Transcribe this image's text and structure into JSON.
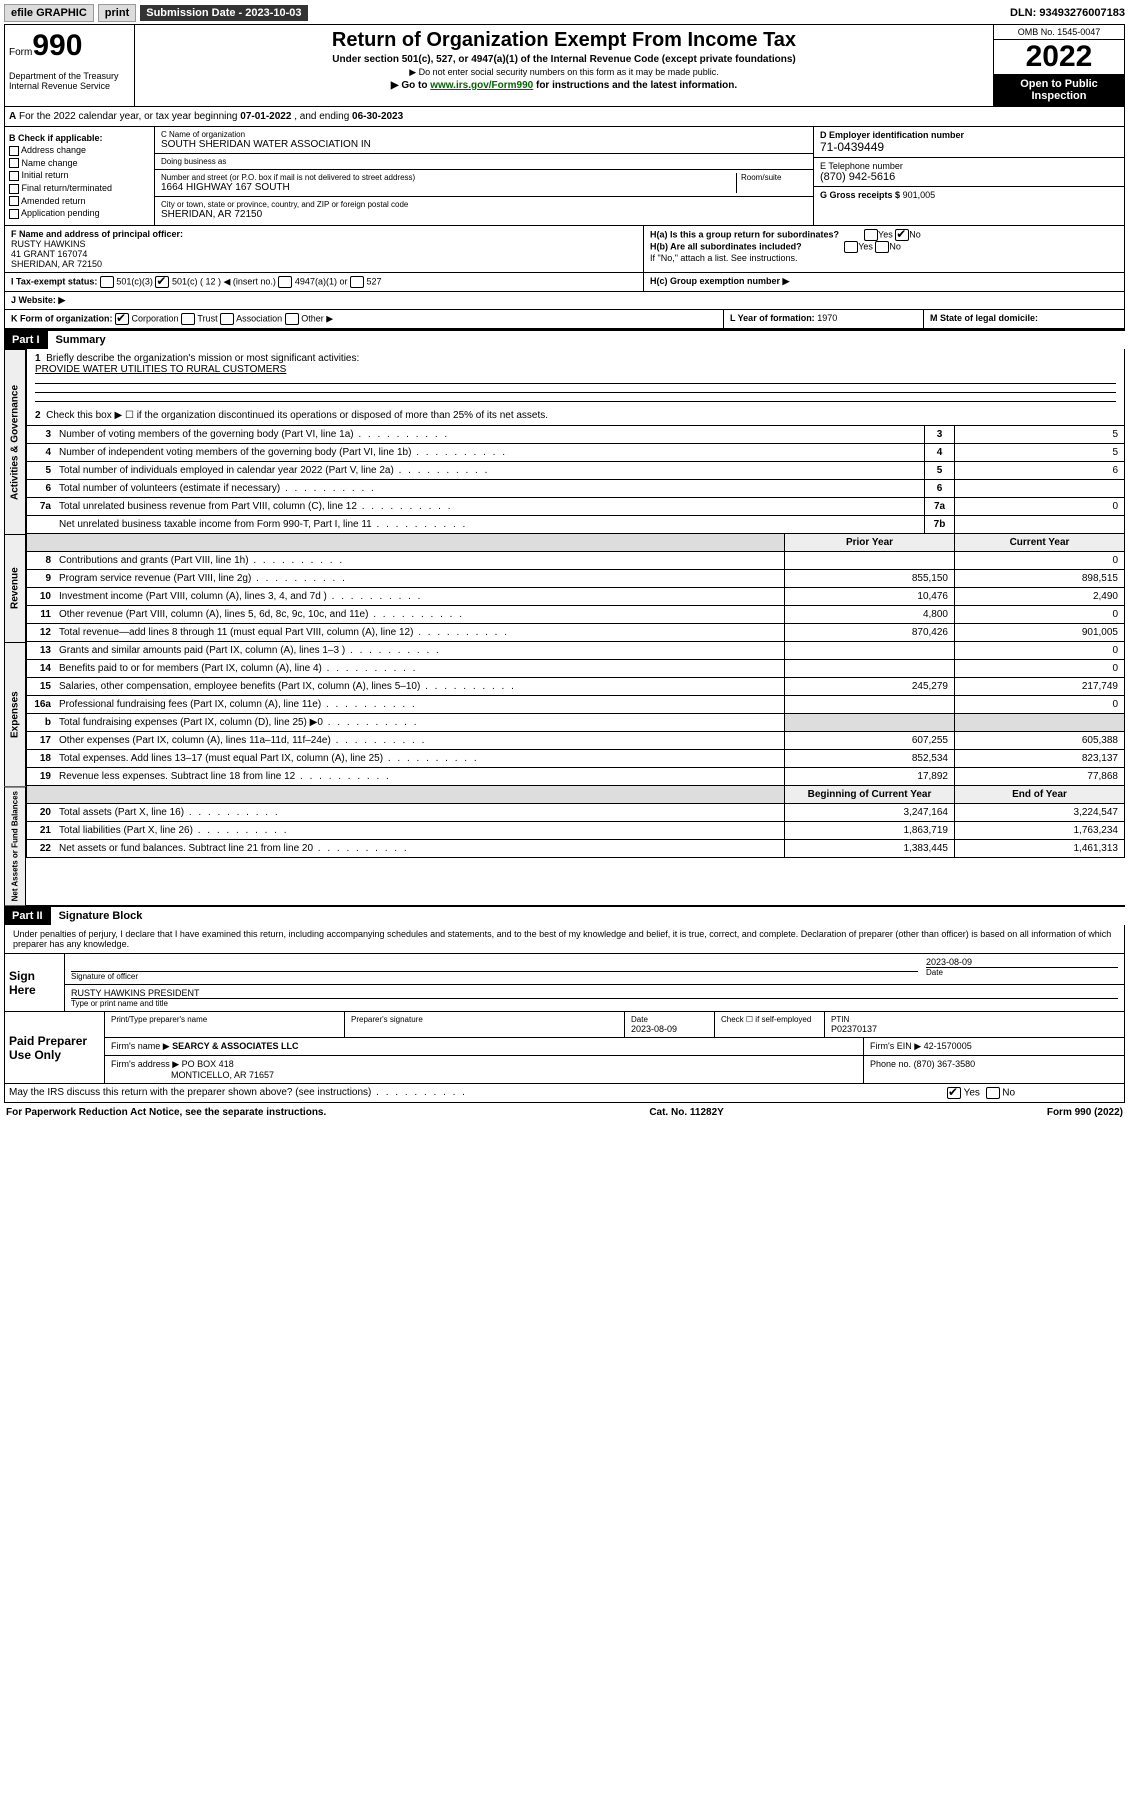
{
  "topbar": {
    "efile": "efile GRAPHIC",
    "print": "print",
    "sub_label": "Submission Date - 2023-10-03",
    "dln": "DLN: 93493276007183"
  },
  "header": {
    "form_label": "Form",
    "form_num": "990",
    "title": "Return of Organization Exempt From Income Tax",
    "subtitle": "Under section 501(c), 527, or 4947(a)(1) of the Internal Revenue Code (except private foundations)",
    "note1": "▶ Do not enter social security numbers on this form as it may be made public.",
    "note2_pre": "▶ Go to ",
    "note2_link": "www.irs.gov/Form990",
    "note2_post": " for instructions and the latest information.",
    "dept": "Department of the Treasury\nInternal Revenue Service",
    "omb": "OMB No. 1545-0047",
    "year": "2022",
    "inspect": "Open to Public Inspection"
  },
  "period": {
    "a_label": "A",
    "text_pre": "For the 2022 calendar year, or tax year beginning ",
    "begin": "07-01-2022",
    "mid": " , and ending ",
    "end": "06-30-2023"
  },
  "boxB": {
    "title": "B Check if applicable:",
    "items": [
      "Address change",
      "Name change",
      "Initial return",
      "Final return/terminated",
      "Amended return",
      "Application pending"
    ]
  },
  "boxC": {
    "name_label": "C Name of organization",
    "name": "SOUTH SHERIDAN WATER ASSOCIATION IN",
    "dba_label": "Doing business as",
    "addr_label": "Number and street (or P.O. box if mail is not delivered to street address)",
    "room_label": "Room/suite",
    "addr": "1664 HIGHWAY 167 SOUTH",
    "city_label": "City or town, state or province, country, and ZIP or foreign postal code",
    "city": "SHERIDAN, AR  72150"
  },
  "boxD": {
    "label": "D Employer identification number",
    "val": "71-0439449"
  },
  "boxE": {
    "label": "E Telephone number",
    "val": "(870) 942-5616"
  },
  "boxG": {
    "label": "G Gross receipts $",
    "val": "901,005"
  },
  "boxF": {
    "label": "F Name and address of principal officer:",
    "name": "RUSTY HAWKINS",
    "addr1": "41 GRANT 167074",
    "addr2": "SHERIDAN, AR  72150"
  },
  "boxH": {
    "a": "H(a)  Is this a group return for subordinates?",
    "b": "H(b)  Are all subordinates included?",
    "bnote": "If \"No,\" attach a list. See instructions.",
    "c": "H(c)  Group exemption number ▶",
    "yn_yes": "Yes",
    "yn_no": "No"
  },
  "boxI": {
    "label": "I   Tax-exempt status:",
    "c501c3": "501(c)(3)",
    "c501c": "501(c) ( 12 ) ◀ (insert no.)",
    "c4947": "4947(a)(1) or",
    "c527": "527"
  },
  "boxJ": {
    "label": "J   Website: ▶"
  },
  "boxK": {
    "label": "K Form of organization:",
    "opts": [
      "Corporation",
      "Trust",
      "Association",
      "Other ▶"
    ]
  },
  "boxL": {
    "label": "L Year of formation:",
    "val": "1970"
  },
  "boxM": {
    "label": "M State of legal domicile:"
  },
  "part1": {
    "num": "Part I",
    "title": "Summary"
  },
  "mission": {
    "line1_num": "1",
    "line1": "Briefly describe the organization's mission or most significant activities:",
    "text": "PROVIDE WATER UTILITIES TO RURAL CUSTOMERS",
    "line2_num": "2",
    "line2": "Check this box ▶ ☐  if the organization discontinued its operations or disposed of more than 25% of its net assets."
  },
  "gov_lines": [
    {
      "n": "3",
      "t": "Number of voting members of the governing body (Part VI, line 1a)",
      "b": "3",
      "v": "5"
    },
    {
      "n": "4",
      "t": "Number of independent voting members of the governing body (Part VI, line 1b)",
      "b": "4",
      "v": "5"
    },
    {
      "n": "5",
      "t": "Total number of individuals employed in calendar year 2022 (Part V, line 2a)",
      "b": "5",
      "v": "6"
    },
    {
      "n": "6",
      "t": "Total number of volunteers (estimate if necessary)",
      "b": "6",
      "v": ""
    },
    {
      "n": "7a",
      "t": "Total unrelated business revenue from Part VIII, column (C), line 12",
      "b": "7a",
      "v": "0"
    },
    {
      "n": "",
      "t": "Net unrelated business taxable income from Form 990-T, Part I, line 11",
      "b": "7b",
      "v": ""
    }
  ],
  "col_hdr": {
    "prior": "Prior Year",
    "current": "Current Year"
  },
  "rev_lines": [
    {
      "n": "8",
      "t": "Contributions and grants (Part VIII, line 1h)",
      "p": "",
      "c": "0"
    },
    {
      "n": "9",
      "t": "Program service revenue (Part VIII, line 2g)",
      "p": "855,150",
      "c": "898,515"
    },
    {
      "n": "10",
      "t": "Investment income (Part VIII, column (A), lines 3, 4, and 7d )",
      "p": "10,476",
      "c": "2,490"
    },
    {
      "n": "11",
      "t": "Other revenue (Part VIII, column (A), lines 5, 6d, 8c, 9c, 10c, and 11e)",
      "p": "4,800",
      "c": "0"
    },
    {
      "n": "12",
      "t": "Total revenue—add lines 8 through 11 (must equal Part VIII, column (A), line 12)",
      "p": "870,426",
      "c": "901,005"
    }
  ],
  "exp_lines": [
    {
      "n": "13",
      "t": "Grants and similar amounts paid (Part IX, column (A), lines 1–3 )",
      "p": "",
      "c": "0"
    },
    {
      "n": "14",
      "t": "Benefits paid to or for members (Part IX, column (A), line 4)",
      "p": "",
      "c": "0"
    },
    {
      "n": "15",
      "t": "Salaries, other compensation, employee benefits (Part IX, column (A), lines 5–10)",
      "p": "245,279",
      "c": "217,749"
    },
    {
      "n": "16a",
      "t": "Professional fundraising fees (Part IX, column (A), line 11e)",
      "p": "",
      "c": "0"
    },
    {
      "n": "b",
      "t": "Total fundraising expenses (Part IX, column (D), line 25) ▶0",
      "p": "",
      "c": "",
      "gray": true
    },
    {
      "n": "17",
      "t": "Other expenses (Part IX, column (A), lines 11a–11d, 11f–24e)",
      "p": "607,255",
      "c": "605,388"
    },
    {
      "n": "18",
      "t": "Total expenses. Add lines 13–17 (must equal Part IX, column (A), line 25)",
      "p": "852,534",
      "c": "823,137"
    },
    {
      "n": "19",
      "t": "Revenue less expenses. Subtract line 18 from line 12",
      "p": "17,892",
      "c": "77,868"
    }
  ],
  "bal_hdr": {
    "begin": "Beginning of Current Year",
    "end": "End of Year"
  },
  "bal_lines": [
    {
      "n": "20",
      "t": "Total assets (Part X, line 16)",
      "p": "3,247,164",
      "c": "3,224,547"
    },
    {
      "n": "21",
      "t": "Total liabilities (Part X, line 26)",
      "p": "1,863,719",
      "c": "1,763,234"
    },
    {
      "n": "22",
      "t": "Net assets or fund balances. Subtract line 21 from line 20",
      "p": "1,383,445",
      "c": "1,461,313"
    }
  ],
  "part2": {
    "num": "Part II",
    "title": "Signature Block"
  },
  "decl": "Under penalties of perjury, I declare that I have examined this return, including accompanying schedules and statements, and to the best of my knowledge and belief, it is true, correct, and complete. Declaration of preparer (other than officer) is based on all information of which preparer has any knowledge.",
  "sign": {
    "label": "Sign Here",
    "sig_label": "Signature of officer",
    "date": "2023-08-09",
    "date_label": "Date",
    "name": "RUSTY HAWKINS  PRESIDENT",
    "name_label": "Type or print name and title"
  },
  "paid": {
    "label": "Paid Preparer Use Only",
    "h1": "Print/Type preparer's name",
    "h2": "Preparer's signature",
    "h3": "Date",
    "h3v": "2023-08-09",
    "h4": "Check ☐ if self-employed",
    "h5": "PTIN",
    "h5v": "P02370137",
    "firm_l": "Firm's name    ▶",
    "firm": "SEARCY & ASSOCIATES LLC",
    "ein_l": "Firm's EIN ▶",
    "ein": "42-1570005",
    "addr_l": "Firm's address ▶",
    "addr1": "PO BOX 418",
    "addr2": "MONTICELLO, AR  71657",
    "phone_l": "Phone no.",
    "phone": "(870) 367-3580"
  },
  "discuss": {
    "text": "May the IRS discuss this return with the preparer shown above? (see instructions)",
    "yes": "Yes",
    "no": "No"
  },
  "footer": {
    "l": "For Paperwork Reduction Act Notice, see the separate instructions.",
    "c": "Cat. No. 11282Y",
    "r": "Form 990 (2022)"
  },
  "side_labels": {
    "gov": "Activities & Governance",
    "rev": "Revenue",
    "exp": "Expenses",
    "bal": "Net Assets or Fund Balances"
  }
}
